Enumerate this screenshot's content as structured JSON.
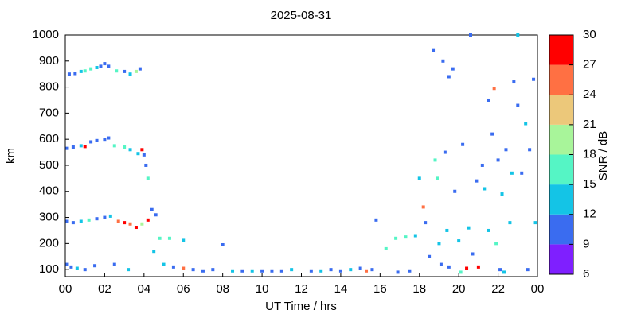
{
  "chart_data": {
    "type": "scatter",
    "title": "2025-08-31",
    "xlabel": "UT Time / hrs",
    "ylabel": "km",
    "colorbar_label": "SNR / dB",
    "xlim": [
      0,
      24
    ],
    "ylim": [
      73,
      1000
    ],
    "xticks": [
      {
        "value": 0,
        "label": "00"
      },
      {
        "value": 2,
        "label": "02"
      },
      {
        "value": 4,
        "label": "04"
      },
      {
        "value": 6,
        "label": "06"
      },
      {
        "value": 8,
        "label": "08"
      },
      10,
      12,
      14,
      16,
      18,
      20,
      22,
      {
        "value": 24,
        "label": "00"
      }
    ],
    "yticks": [
      100,
      200,
      300,
      400,
      500,
      600,
      700,
      800,
      900,
      1000
    ],
    "clim": [
      6,
      30
    ],
    "cticks": [
      6,
      9,
      12,
      15,
      18,
      21,
      24,
      27,
      30
    ],
    "colors": [
      "#7f1fff",
      "#3a6cf0",
      "#14c4e6",
      "#55f5c5",
      "#a8f59a",
      "#ecc87a",
      "#ff7043",
      "#ff0000"
    ],
    "x": [
      0.2,
      0.5,
      0.8,
      1.0,
      1.3,
      1.6,
      1.8,
      2.0,
      2.2,
      2.6,
      3.0,
      3.3,
      3.6,
      3.8,
      0.1,
      0.4,
      0.8,
      1.0,
      1.3,
      1.6,
      2.0,
      2.2,
      2.5,
      3.0,
      3.3,
      3.7,
      3.9,
      4.0,
      4.1,
      4.2,
      0.1,
      0.4,
      0.8,
      1.2,
      1.6,
      2.0,
      2.3,
      2.7,
      3.0,
      3.3,
      3.6,
      3.9,
      4.2,
      4.4,
      4.6,
      0.1,
      0.3,
      0.6,
      1.0,
      1.5,
      2.5,
      3.2,
      4.5,
      4.8,
      5.3,
      6.0,
      5.0,
      5.5,
      6.0,
      6.5,
      7.0,
      7.5,
      8.0,
      8.5,
      9.0,
      9.5,
      10.0,
      10.5,
      11.0,
      11.5,
      12.5,
      13.0,
      13.5,
      14.0,
      14.5,
      15.0,
      15.3,
      15.6,
      15.8,
      16.3,
      16.8,
      17.3,
      17.8,
      17.5,
      18.0,
      18.2,
      18.3,
      18.5,
      18.7,
      18.8,
      18.9,
      19.0,
      19.2,
      19.3,
      19.4,
      19.5,
      19.5,
      19.7,
      19.8,
      20.0,
      20.2,
      20.4,
      20.5,
      20.7,
      20.9,
      21.0,
      21.2,
      21.3,
      21.5,
      21.5,
      21.7,
      21.8,
      21.9,
      22.0,
      22.1,
      22.2,
      22.4,
      22.6,
      22.7,
      22.8,
      23.0,
      23.2,
      23.4,
      23.6,
      23.8,
      23.9,
      23.5,
      23.0,
      20.6,
      16.9,
      19.1,
      20.1,
      22.3
    ],
    "y": [
      850,
      852,
      860,
      862,
      870,
      875,
      880,
      890,
      880,
      862,
      860,
      850,
      860,
      870,
      565,
      570,
      575,
      572,
      590,
      595,
      600,
      605,
      575,
      570,
      560,
      545,
      560,
      540,
      500,
      450,
      285,
      280,
      285,
      290,
      295,
      300,
      305,
      285,
      280,
      275,
      262,
      275,
      290,
      330,
      310,
      120,
      110,
      105,
      100,
      115,
      120,
      100,
      170,
      220,
      220,
      212,
      120,
      110,
      105,
      100,
      95,
      100,
      195,
      95,
      95,
      95,
      95,
      95,
      95,
      100,
      95,
      95,
      100,
      95,
      100,
      105,
      95,
      100,
      290,
      180,
      220,
      225,
      230,
      95,
      450,
      340,
      280,
      150,
      940,
      520,
      450,
      200,
      900,
      550,
      250,
      840,
      110,
      870,
      400,
      210,
      580,
      105,
      260,
      160,
      440,
      110,
      500,
      410,
      750,
      250,
      620,
      795,
      200,
      520,
      100,
      390,
      560,
      280,
      470,
      820,
      730,
      470,
      660,
      560,
      830,
      280,
      100,
      1000,
      1000,
      90,
      120,
      90,
      90
    ],
    "snr": [
      10,
      11,
      14,
      15,
      17,
      14,
      10,
      11,
      10,
      15,
      11,
      14,
      18,
      10,
      10,
      11,
      14,
      27,
      10,
      11,
      10,
      11,
      15,
      17,
      14,
      12,
      28,
      11,
      10,
      15,
      10,
      11,
      14,
      17,
      11,
      10,
      14,
      25,
      28,
      26,
      28,
      18,
      27,
      10,
      11,
      10,
      11,
      14,
      10,
      11,
      10,
      12,
      14,
      17,
      15,
      14,
      14,
      10,
      26,
      11,
      10,
      10,
      10,
      12,
      10,
      14,
      11,
      10,
      10,
      12,
      10,
      12,
      10,
      10,
      12,
      10,
      25,
      11,
      10,
      15,
      17,
      15,
      14,
      11,
      14,
      25,
      10,
      10,
      10,
      17,
      15,
      14,
      10,
      11,
      12,
      10,
      10,
      11,
      10,
      14,
      10,
      27,
      13,
      10,
      10,
      30,
      10,
      14,
      11,
      14,
      11,
      25,
      15,
      11,
      10,
      14,
      11,
      12,
      14,
      10,
      10,
      11,
      12,
      10,
      10,
      14,
      10,
      12,
      10,
      11,
      10,
      15,
      12
    ]
  }
}
